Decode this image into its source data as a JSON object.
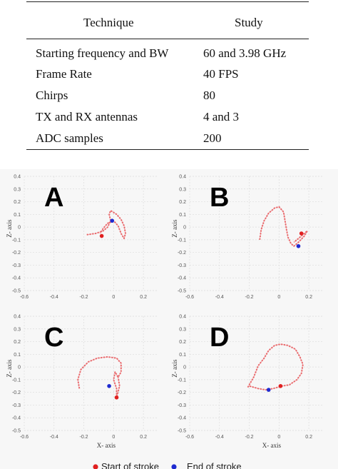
{
  "table": {
    "headers": [
      "Technique",
      "Study"
    ],
    "rows": [
      [
        "Starting frequency and BW",
        "60 and 3.98 GHz"
      ],
      [
        "Frame Rate",
        "40 FPS"
      ],
      [
        "Chirps",
        "80"
      ],
      [
        "TX and RX antennas",
        "4 and 3"
      ],
      [
        "ADC samples",
        "200"
      ]
    ]
  },
  "chart_data": [
    {
      "type": "scatter",
      "panel_label": "A",
      "xlabel": "",
      "ylabel": "Z- axis",
      "xlim": [
        -0.6,
        0.3
      ],
      "ylim": [
        -0.5,
        0.4
      ],
      "xticks": [
        -0.6,
        -0.4,
        -0.2,
        0,
        0.2
      ],
      "yticks": [
        0.4,
        0.3,
        0.2,
        0.1,
        0,
        -0.1,
        -0.2,
        -0.3,
        -0.4,
        -0.5
      ],
      "trajectory": [
        [
          -0.18,
          -0.06
        ],
        [
          -0.12,
          -0.05
        ],
        [
          -0.07,
          -0.03
        ],
        [
          -0.04,
          0.0
        ],
        [
          -0.02,
          0.05
        ],
        [
          -0.03,
          0.1
        ],
        [
          -0.02,
          0.13
        ],
        [
          0.02,
          0.1
        ],
        [
          0.05,
          0.06
        ],
        [
          0.07,
          0.01
        ],
        [
          0.08,
          -0.05
        ],
        [
          0.07,
          -0.09
        ],
        [
          0.05,
          -0.05
        ],
        [
          0.03,
          0.01
        ],
        [
          0.0,
          0.05
        ],
        [
          -0.04,
          0.03
        ],
        [
          -0.07,
          -0.01
        ],
        [
          -0.09,
          -0.05
        ]
      ],
      "start": [
        -0.08,
        -0.07
      ],
      "end": [
        -0.01,
        0.05
      ]
    },
    {
      "type": "scatter",
      "panel_label": "B",
      "xlabel": "",
      "ylabel": "Z- axis",
      "xlim": [
        -0.6,
        0.3
      ],
      "ylim": [
        -0.5,
        0.4
      ],
      "xticks": [
        -0.6,
        -0.4,
        -0.2,
        0,
        0.2
      ],
      "yticks": [
        0.4,
        0.3,
        0.2,
        0.1,
        0,
        -0.1,
        -0.2,
        -0.3,
        -0.4,
        -0.5
      ],
      "trajectory": [
        [
          -0.13,
          -0.1
        ],
        [
          -0.12,
          -0.02
        ],
        [
          -0.1,
          0.05
        ],
        [
          -0.07,
          0.11
        ],
        [
          -0.03,
          0.15
        ],
        [
          0.0,
          0.16
        ],
        [
          0.03,
          0.12
        ],
        [
          0.04,
          0.05
        ],
        [
          0.05,
          -0.02
        ],
        [
          0.06,
          -0.08
        ],
        [
          0.08,
          -0.13
        ],
        [
          0.1,
          -0.15
        ],
        [
          0.13,
          -0.12
        ],
        [
          0.17,
          -0.07
        ],
        [
          0.19,
          -0.03
        ],
        [
          0.16,
          -0.06
        ],
        [
          0.13,
          -0.09
        ],
        [
          0.1,
          -0.12
        ]
      ],
      "start": [
        0.15,
        -0.05
      ],
      "end": [
        0.13,
        -0.15
      ]
    },
    {
      "type": "scatter",
      "panel_label": "C",
      "xlabel": "X- axis",
      "ylabel": "Z- axis",
      "xlim": [
        -0.6,
        0.3
      ],
      "ylim": [
        -0.5,
        0.4
      ],
      "xticks": [
        -0.6,
        -0.4,
        -0.2,
        0,
        0.2
      ],
      "yticks": [
        0.4,
        0.3,
        0.2,
        0.1,
        0,
        -0.1,
        -0.2,
        -0.3,
        -0.4,
        -0.5
      ],
      "trajectory": [
        [
          -0.23,
          -0.17
        ],
        [
          -0.24,
          -0.1
        ],
        [
          -0.22,
          -0.02
        ],
        [
          -0.17,
          0.04
        ],
        [
          -0.11,
          0.07
        ],
        [
          -0.04,
          0.08
        ],
        [
          0.02,
          0.07
        ],
        [
          0.05,
          0.03
        ],
        [
          0.05,
          -0.04
        ],
        [
          0.03,
          -0.08
        ],
        [
          0.01,
          -0.04
        ],
        [
          0.0,
          -0.1
        ],
        [
          0.02,
          -0.17
        ],
        [
          0.02,
          -0.24
        ],
        [
          0.04,
          -0.15
        ],
        [
          0.03,
          -0.08
        ]
      ],
      "start": [
        0.02,
        -0.24
      ],
      "end": [
        -0.03,
        -0.15
      ]
    },
    {
      "type": "scatter",
      "panel_label": "D",
      "xlabel": "X- axis",
      "ylabel": "Z- axis",
      "xlim": [
        -0.6,
        0.3
      ],
      "ylim": [
        -0.5,
        0.4
      ],
      "xticks": [
        -0.6,
        -0.4,
        -0.2,
        0,
        0.2
      ],
      "yticks": [
        0.4,
        0.3,
        0.2,
        0.1,
        0,
        -0.1,
        -0.2,
        -0.3,
        -0.4,
        -0.5
      ],
      "trajectory": [
        [
          -0.21,
          -0.16
        ],
        [
          -0.17,
          -0.08
        ],
        [
          -0.14,
          0.01
        ],
        [
          -0.1,
          0.07
        ],
        [
          -0.07,
          0.13
        ],
        [
          -0.03,
          0.17
        ],
        [
          0.01,
          0.18
        ],
        [
          0.06,
          0.17
        ],
        [
          0.11,
          0.14
        ],
        [
          0.14,
          0.08
        ],
        [
          0.16,
          0.02
        ],
        [
          0.15,
          -0.05
        ],
        [
          0.12,
          -0.1
        ],
        [
          0.07,
          -0.14
        ],
        [
          0.02,
          -0.15
        ],
        [
          -0.04,
          -0.17
        ],
        [
          -0.09,
          -0.18
        ],
        [
          -0.14,
          -0.17
        ],
        [
          -0.2,
          -0.15
        ]
      ],
      "start": [
        0.01,
        -0.15
      ],
      "end": [
        -0.07,
        -0.18
      ]
    }
  ],
  "legend": {
    "items": [
      {
        "label": "Start of stroke",
        "color": "#e02020"
      },
      {
        "label": "End of stroke",
        "color": "#1f2bd0"
      }
    ]
  },
  "colors": {
    "trajectory": "#e8575a",
    "start": "#e02020",
    "end": "#1f2bd0",
    "grid": "#dcdcdc",
    "axis_text": "#555555"
  }
}
